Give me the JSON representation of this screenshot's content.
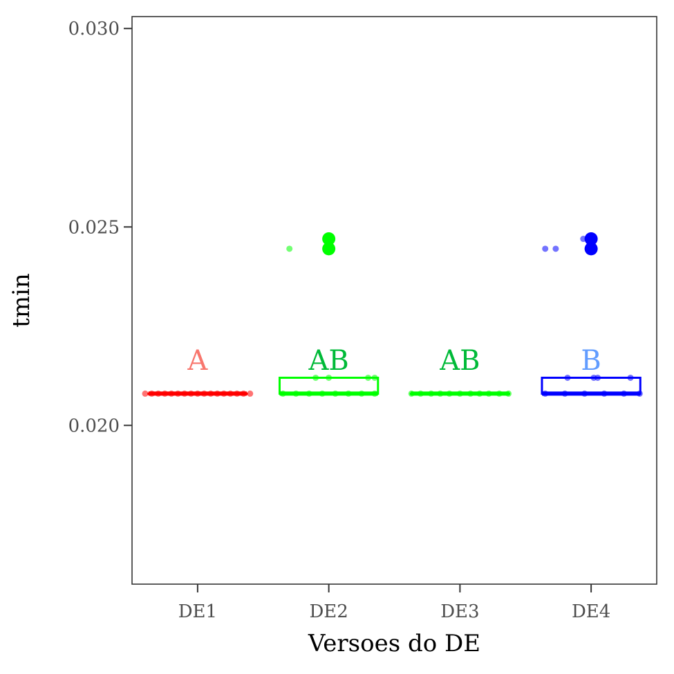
{
  "chart_data": {
    "type": "box",
    "xlabel": "Versoes do DE",
    "ylabel": "tmin",
    "ylim": [
      0.016,
      0.0303
    ],
    "yticks": [
      {
        "value": 0.02,
        "label": "0.020"
      },
      {
        "value": 0.025,
        "label": "0.025"
      },
      {
        "value": 0.03,
        "label": "0.030"
      }
    ],
    "categories": [
      "DE1",
      "DE2",
      "DE3",
      "DE4"
    ],
    "grid": false,
    "legend": "none",
    "groups": [
      {
        "name": "DE1",
        "color": "#ff0000",
        "letter": "A",
        "letter_color": "#f8766d",
        "box": {
          "q1": 0.0208,
          "median": 0.0208,
          "q3": 0.0208,
          "whisker_low": 0.0208,
          "whisker_high": 0.0208
        },
        "outliers": [],
        "points": [
          {
            "x": -0.4,
            "y": 0.0208
          },
          {
            "x": -0.35,
            "y": 0.0208
          },
          {
            "x": -0.3,
            "y": 0.0208
          },
          {
            "x": -0.25,
            "y": 0.0208
          },
          {
            "x": -0.2,
            "y": 0.0208
          },
          {
            "x": -0.15,
            "y": 0.0208
          },
          {
            "x": -0.1,
            "y": 0.0208
          },
          {
            "x": -0.05,
            "y": 0.0208
          },
          {
            "x": 0.0,
            "y": 0.0208
          },
          {
            "x": 0.05,
            "y": 0.0208
          },
          {
            "x": 0.1,
            "y": 0.0208
          },
          {
            "x": 0.15,
            "y": 0.0208
          },
          {
            "x": 0.2,
            "y": 0.0208
          },
          {
            "x": 0.25,
            "y": 0.0208
          },
          {
            "x": 0.3,
            "y": 0.0208
          },
          {
            "x": 0.35,
            "y": 0.0208
          },
          {
            "x": 0.4,
            "y": 0.0208
          }
        ]
      },
      {
        "name": "DE2",
        "color": "#00ff00",
        "letter": "AB",
        "letter_color": "#00ba38",
        "box": {
          "q1": 0.0208,
          "median": 0.0208,
          "q3": 0.0212,
          "whisker_low": 0.0208,
          "whisker_high": 0.0212
        },
        "outliers": [
          0.0247,
          0.02445
        ],
        "points": [
          {
            "x": -0.3,
            "y": 0.02445
          },
          {
            "x": -0.1,
            "y": 0.0212
          },
          {
            "x": 0.0,
            "y": 0.0212
          },
          {
            "x": 0.3,
            "y": 0.0212
          },
          {
            "x": 0.35,
            "y": 0.0212
          },
          {
            "x": -0.35,
            "y": 0.0208
          },
          {
            "x": -0.25,
            "y": 0.0208
          },
          {
            "x": -0.15,
            "y": 0.0208
          },
          {
            "x": -0.05,
            "y": 0.0208
          },
          {
            "x": 0.05,
            "y": 0.0208
          },
          {
            "x": 0.15,
            "y": 0.0208
          },
          {
            "x": 0.25,
            "y": 0.0208
          },
          {
            "x": 0.35,
            "y": 0.0208
          }
        ]
      },
      {
        "name": "DE3",
        "color": "#00ff00",
        "letter": "AB",
        "letter_color": "#00ba38",
        "box": {
          "q1": 0.0208,
          "median": 0.0208,
          "q3": 0.0208,
          "whisker_low": 0.0208,
          "whisker_high": 0.0208
        },
        "outliers": [],
        "points": [
          {
            "x": -0.37,
            "y": 0.0208
          },
          {
            "x": -0.3,
            "y": 0.0208
          },
          {
            "x": -0.22,
            "y": 0.0208
          },
          {
            "x": -0.15,
            "y": 0.0208
          },
          {
            "x": -0.08,
            "y": 0.0208
          },
          {
            "x": 0.0,
            "y": 0.0208
          },
          {
            "x": 0.08,
            "y": 0.0208
          },
          {
            "x": 0.15,
            "y": 0.0208
          },
          {
            "x": 0.22,
            "y": 0.0208
          },
          {
            "x": 0.3,
            "y": 0.0208
          },
          {
            "x": 0.37,
            "y": 0.0208
          }
        ]
      },
      {
        "name": "DE4",
        "color": "#0000ff",
        "letter": "B",
        "letter_color": "#619cff",
        "box": {
          "q1": 0.0208,
          "median": 0.0208,
          "q3": 0.0212,
          "whisker_low": 0.0208,
          "whisker_high": 0.0212
        },
        "outliers": [
          0.0247,
          0.02445
        ],
        "points": [
          {
            "x": -0.35,
            "y": 0.02445
          },
          {
            "x": -0.27,
            "y": 0.02445
          },
          {
            "x": -0.06,
            "y": 0.0247
          },
          {
            "x": -0.18,
            "y": 0.0212
          },
          {
            "x": 0.02,
            "y": 0.0212
          },
          {
            "x": 0.05,
            "y": 0.0212
          },
          {
            "x": 0.3,
            "y": 0.0212
          },
          {
            "x": -0.35,
            "y": 0.0208
          },
          {
            "x": -0.2,
            "y": 0.0208
          },
          {
            "x": -0.05,
            "y": 0.0208
          },
          {
            "x": 0.1,
            "y": 0.0208
          },
          {
            "x": 0.25,
            "y": 0.0208
          },
          {
            "x": 0.37,
            "y": 0.0208
          }
        ]
      }
    ]
  }
}
